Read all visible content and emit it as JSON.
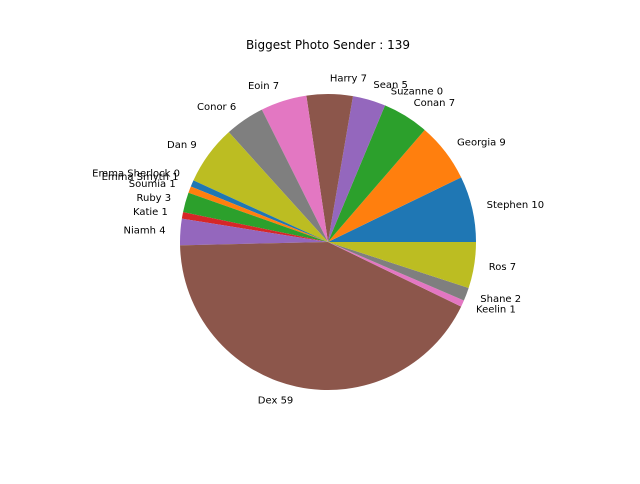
{
  "chart_data": {
    "type": "pie",
    "title": "Biggest Photo Sender : 139",
    "start_angle_deg": 0,
    "direction": "counterclockwise",
    "slices": [
      {
        "label": "Stephen 10",
        "value": 10,
        "color": "#1f77b4"
      },
      {
        "label": "Georgia 9",
        "value": 9,
        "color": "#ff7f0e"
      },
      {
        "label": "Conan 7",
        "value": 7,
        "color": "#2ca02c"
      },
      {
        "label": "Suzanne 0",
        "value": 0,
        "color": "#d62728"
      },
      {
        "label": "Sean 5",
        "value": 5,
        "color": "#9467bd"
      },
      {
        "label": "Harry 7",
        "value": 7,
        "color": "#8c564b"
      },
      {
        "label": "Eoin 7",
        "value": 7,
        "color": "#e377c2"
      },
      {
        "label": "Conor 6",
        "value": 6,
        "color": "#7f7f7f"
      },
      {
        "label": "Dan 9",
        "value": 9,
        "color": "#bcbd22"
      },
      {
        "label": "Emma Sherlock 0",
        "value": 0,
        "color": "#17becf"
      },
      {
        "label": "Emma Smyth 1",
        "value": 1,
        "color": "#1f77b4"
      },
      {
        "label": "Soumia 1",
        "value": 1,
        "color": "#ff7f0e"
      },
      {
        "label": "Ruby 3",
        "value": 3,
        "color": "#2ca02c"
      },
      {
        "label": "Katie 1",
        "value": 1,
        "color": "#d62728"
      },
      {
        "label": "Niamh 4",
        "value": 4,
        "color": "#9467bd"
      },
      {
        "label": "Dex 59",
        "value": 59,
        "color": "#8c564b"
      },
      {
        "label": "Keelin 1",
        "value": 1,
        "color": "#e377c2"
      },
      {
        "label": "Shane 2",
        "value": 2,
        "color": "#7f7f7f"
      },
      {
        "label": "Ros 7",
        "value": 7,
        "color": "#bcbd22"
      }
    ]
  }
}
